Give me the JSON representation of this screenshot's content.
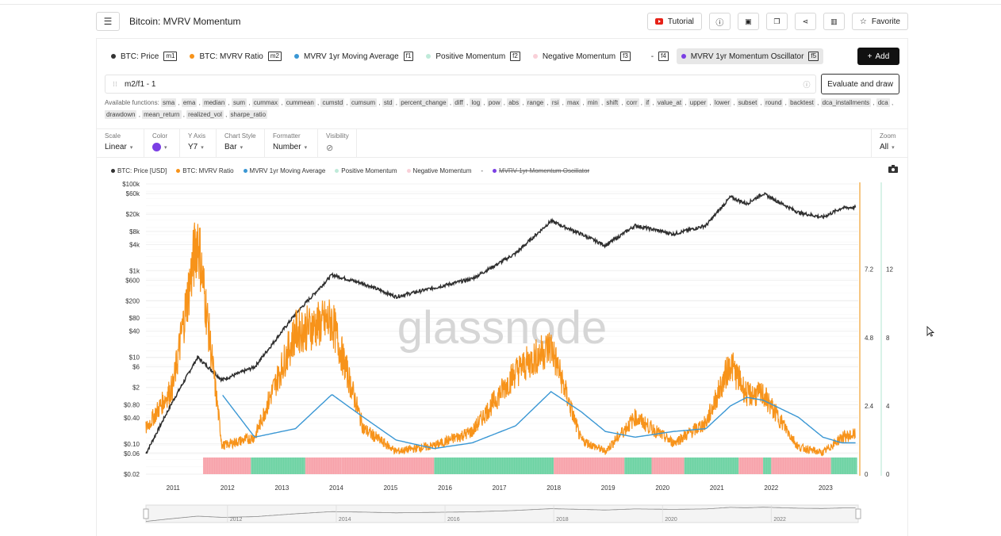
{
  "header": {
    "title": "Bitcoin: MVRV Momentum",
    "tutorial": "Tutorial",
    "favorite": "Favorite"
  },
  "metrics": [
    {
      "label": "BTC: Price",
      "key": "m1",
      "color": "#333333"
    },
    {
      "label": "BTC: MVRV Ratio",
      "key": "m2",
      "color": "#f7931a"
    },
    {
      "label": "MVRV 1yr Moving Average",
      "key": "f1",
      "color": "#3a97d4"
    },
    {
      "label": "Positive Momentum",
      "key": "f2",
      "color": "#bfead9"
    },
    {
      "label": "Negative Momentum",
      "key": "f3",
      "color": "#f9d0d8"
    },
    {
      "label": "-",
      "key": "f4",
      "color": ""
    },
    {
      "label": "MVRV 1yr Momentum Oscillator",
      "key": "f5",
      "color": "#7b3fe4",
      "selected": true
    }
  ],
  "add_label": "Add",
  "formula": {
    "value": "m2/f1 - 1"
  },
  "evaluate_label": "Evaluate and draw",
  "functions_label": "Available functions:",
  "functions": [
    "sma",
    "ema",
    "median",
    "sum",
    "cummax",
    "cummean",
    "cumstd",
    "cumsum",
    "std",
    "percent_change",
    "diff",
    "log",
    "pow",
    "abs",
    "range",
    "rsi",
    "max",
    "min",
    "shift",
    "corr",
    "if",
    "value_at",
    "upper",
    "lower",
    "subset",
    "round",
    "backtest",
    "dca_installments",
    "dca",
    "drawdown",
    "mean_return",
    "realized_vol",
    "sharpe_ratio"
  ],
  "controls": {
    "scale": {
      "label": "Scale",
      "value": "Linear"
    },
    "color": {
      "label": "Color",
      "value": "#7b3fe4"
    },
    "yaxis": {
      "label": "Y Axis",
      "value": "Y7"
    },
    "chart_style": {
      "label": "Chart Style",
      "value": "Bar"
    },
    "formatter": {
      "label": "Formatter",
      "value": "Number"
    },
    "visibility": {
      "label": "Visibility"
    },
    "zoom": {
      "label": "Zoom",
      "value": "All"
    }
  },
  "legend": [
    {
      "label": "BTC: Price [USD]",
      "color": "#333333"
    },
    {
      "label": "BTC: MVRV Ratio",
      "color": "#f7931a"
    },
    {
      "label": "MVRV 1yr Moving Average",
      "color": "#3a97d4"
    },
    {
      "label": "Positive Momentum",
      "color": "#bfead9"
    },
    {
      "label": "Negative Momentum",
      "color": "#f9d0d8"
    },
    {
      "label": "-",
      "color": ""
    },
    {
      "label": "MVRV 1yr Momentum Oscillator",
      "color": "#7b3fe4",
      "hidden": true
    }
  ],
  "watermark": "glassnode",
  "chart_data": {
    "type": "line",
    "x_ticks": [
      "2011",
      "2012",
      "2013",
      "2014",
      "2015",
      "2016",
      "2017",
      "2018",
      "2019",
      "2020",
      "2021",
      "2022",
      "2023"
    ],
    "y_left_ticks": [
      "$100k",
      "$60k",
      "$20k",
      "$8k",
      "$4k",
      "$1k",
      "$600",
      "$200",
      "$80",
      "$40",
      "$10",
      "$6",
      "$2",
      "$0.80",
      "$0.40",
      "$0.10",
      "$0.06",
      "$0.02"
    ],
    "y_right1_ticks": [
      "7.2",
      "4.8",
      "2.4",
      "0"
    ],
    "y_right2_ticks": [
      "12",
      "8",
      "4",
      "0"
    ],
    "navigator_ticks": [
      "2012",
      "2014",
      "2016",
      "2018",
      "2020",
      "2022"
    ],
    "x": [
      2010.5,
      2011.0,
      2011.45,
      2011.9,
      2012.5,
      2013.25,
      2013.92,
      2014.5,
      2015.1,
      2015.8,
      2016.5,
      2017.3,
      2017.95,
      2018.5,
      2018.95,
      2019.5,
      2020.2,
      2020.8,
      2021.25,
      2021.55,
      2021.85,
      2022.5,
      2022.95,
      2023.3,
      2023.55
    ],
    "series": [
      {
        "name": "BTC: Price [USD]",
        "axis": "left",
        "values": [
          0.06,
          1,
          10,
          3,
          6,
          100,
          800,
          500,
          250,
          400,
          650,
          2500,
          14000,
          7000,
          3800,
          11000,
          7000,
          11000,
          50000,
          35000,
          60000,
          22000,
          17000,
          28000,
          29000
        ]
      },
      {
        "name": "BTC: MVRV Ratio",
        "axis": "right1",
        "values": [
          1.6,
          3.1,
          8.4,
          1.0,
          1.3,
          5.0,
          5.4,
          1.6,
          0.8,
          1.0,
          1.5,
          3.6,
          4.5,
          1.2,
          0.8,
          2.0,
          1.1,
          1.8,
          3.9,
          2.8,
          2.8,
          0.95,
          0.75,
          1.3,
          1.4
        ]
      },
      {
        "name": "MVRV 1yr Moving Average",
        "axis": "right1",
        "values": [
          null,
          null,
          null,
          2.8,
          1.3,
          1.6,
          2.8,
          2.0,
          1.2,
          0.9,
          1.1,
          1.7,
          2.9,
          2.2,
          1.5,
          1.3,
          1.5,
          1.6,
          2.4,
          2.7,
          2.6,
          2.0,
          1.3,
          1.1,
          1.1
        ]
      }
    ],
    "momentum": {
      "axis": "right2",
      "note": "Bars shown as positive (green) / negative (red) bands",
      "periods": [
        {
          "start": 2011.55,
          "end": 2012.43,
          "sign": "negative"
        },
        {
          "start": 2012.43,
          "end": 2013.43,
          "sign": "positive"
        },
        {
          "start": 2013.43,
          "end": 2014.1,
          "sign": "negative"
        },
        {
          "start": 2014.1,
          "end": 2015.8,
          "sign": "negative"
        },
        {
          "start": 2015.8,
          "end": 2018.0,
          "sign": "positive"
        },
        {
          "start": 2018.0,
          "end": 2019.3,
          "sign": "negative"
        },
        {
          "start": 2019.3,
          "end": 2019.8,
          "sign": "positive"
        },
        {
          "start": 2019.8,
          "end": 2020.4,
          "sign": "negative"
        },
        {
          "start": 2020.4,
          "end": 2021.4,
          "sign": "positive"
        },
        {
          "start": 2021.4,
          "end": 2021.85,
          "sign": "negative"
        },
        {
          "start": 2021.85,
          "end": 2022.0,
          "sign": "positive"
        },
        {
          "start": 2022.0,
          "end": 2023.1,
          "sign": "negative"
        },
        {
          "start": 2023.1,
          "end": 2023.58,
          "sign": "positive"
        }
      ]
    },
    "grid": true,
    "legend_position": "top-left"
  }
}
